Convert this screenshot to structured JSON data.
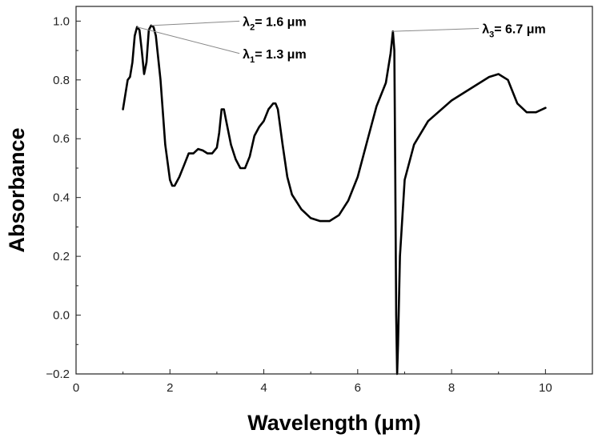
{
  "chart_data": {
    "type": "line",
    "title": "",
    "xlabel": "Wavelength (μm)",
    "ylabel": "Absorbance",
    "xlim": [
      0,
      11
    ],
    "ylim": [
      -0.2,
      1.05
    ],
    "xticks": [
      0,
      2,
      4,
      6,
      8,
      10
    ],
    "yticks": [
      -0.2,
      0.0,
      0.2,
      0.4,
      0.6,
      0.8,
      1.0
    ],
    "xtick_labels": [
      "0",
      "2",
      "4",
      "6",
      "8",
      "10"
    ],
    "ytick_labels": [
      "−0.2",
      "0.0",
      "0.2",
      "0.4",
      "0.6",
      "0.8",
      "1.0"
    ],
    "grid": false,
    "series": [
      {
        "name": "Absorbance",
        "color": "#000000",
        "x": [
          1.0,
          1.1,
          1.15,
          1.2,
          1.25,
          1.3,
          1.35,
          1.4,
          1.45,
          1.5,
          1.55,
          1.6,
          1.65,
          1.7,
          1.8,
          1.9,
          2.0,
          2.05,
          2.1,
          2.2,
          2.3,
          2.4,
          2.5,
          2.6,
          2.7,
          2.8,
          2.9,
          3.0,
          3.05,
          3.1,
          3.15,
          3.2,
          3.3,
          3.4,
          3.5,
          3.6,
          3.7,
          3.8,
          3.9,
          4.0,
          4.1,
          4.2,
          4.25,
          4.3,
          4.4,
          4.5,
          4.6,
          4.8,
          5.0,
          5.2,
          5.4,
          5.6,
          5.8,
          6.0,
          6.2,
          6.4,
          6.6,
          6.7,
          6.75,
          6.78,
          6.8,
          6.82,
          6.84,
          6.86,
          6.9,
          7.0,
          7.2,
          7.5,
          8.0,
          8.5,
          8.8,
          9.0,
          9.2,
          9.4,
          9.6,
          9.8,
          10.0
        ],
        "values": [
          0.7,
          0.8,
          0.81,
          0.86,
          0.95,
          0.98,
          0.97,
          0.9,
          0.82,
          0.86,
          0.97,
          0.985,
          0.98,
          0.95,
          0.8,
          0.58,
          0.46,
          0.44,
          0.44,
          0.47,
          0.51,
          0.55,
          0.55,
          0.565,
          0.56,
          0.55,
          0.55,
          0.57,
          0.62,
          0.7,
          0.7,
          0.66,
          0.58,
          0.53,
          0.5,
          0.5,
          0.54,
          0.61,
          0.64,
          0.66,
          0.7,
          0.72,
          0.72,
          0.7,
          0.58,
          0.47,
          0.41,
          0.36,
          0.33,
          0.32,
          0.32,
          0.34,
          0.39,
          0.47,
          0.59,
          0.71,
          0.79,
          0.89,
          0.965,
          0.9,
          0.5,
          0.0,
          -0.2,
          -0.1,
          0.2,
          0.46,
          0.58,
          0.66,
          0.73,
          0.78,
          0.81,
          0.82,
          0.8,
          0.72,
          0.69,
          0.69,
          0.705
        ]
      }
    ],
    "annotations": [
      {
        "label": "λ",
        "sub": "2",
        "suffix": "= 1.6 μm",
        "x": 1.6,
        "y": 0.985,
        "text_x": 3.55,
        "text_y": 1.0
      },
      {
        "label": "λ",
        "sub": "1",
        "suffix": "= 1.3 μm",
        "x": 1.3,
        "y": 0.98,
        "text_x": 3.55,
        "text_y": 0.89
      },
      {
        "label": "λ",
        "sub": "3",
        "suffix": "= 6.7 μm",
        "x": 6.72,
        "y": 0.965,
        "text_x": 8.65,
        "text_y": 0.975
      }
    ]
  }
}
